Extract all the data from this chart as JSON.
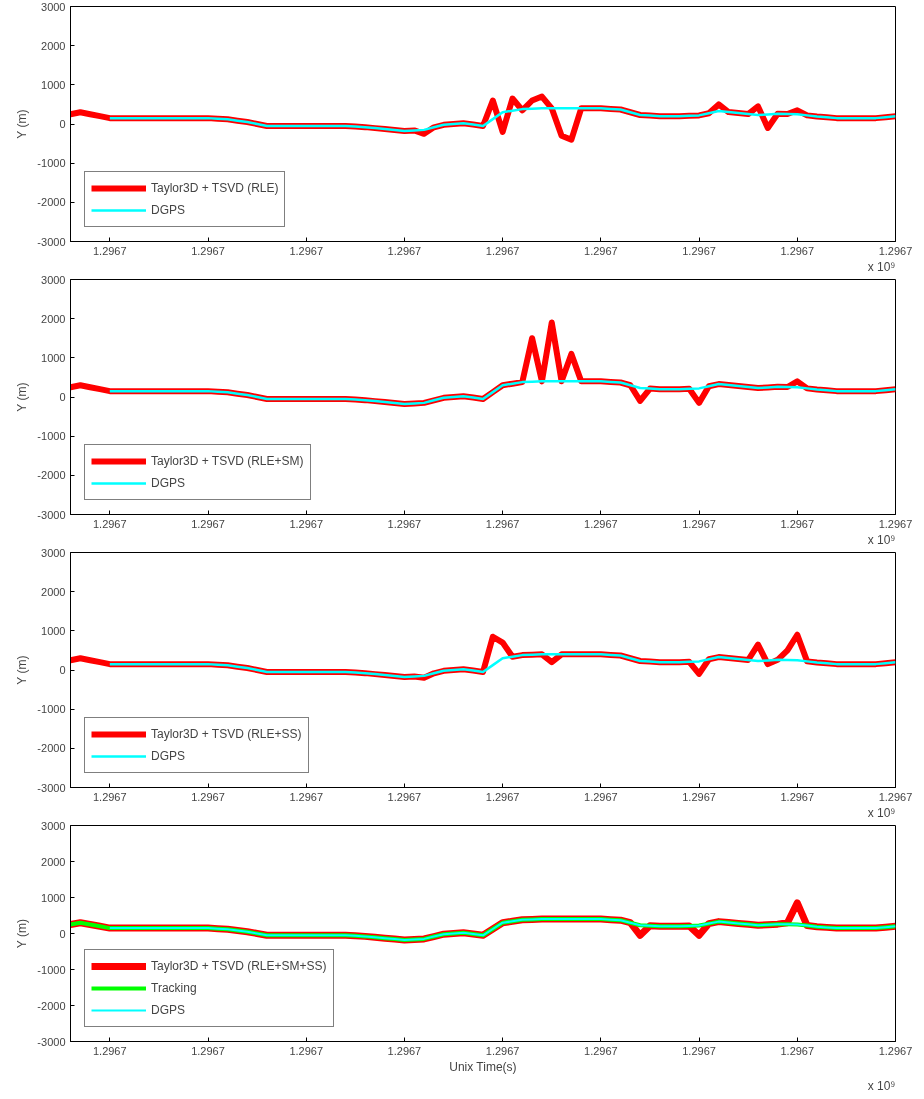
{
  "chart_data": [
    {
      "type": "line",
      "ylabel": "Y (m)",
      "legend": "bottom left",
      "grid": false,
      "annotations": [
        "x 10⁹"
      ],
      "x": [
        1.2967006,
        1.2967007,
        1.2967008,
        1.2967009,
        1.296701,
        1.2967011,
        1.2967012,
        1.2967013,
        1.2967014,
        1.2967015,
        1.2967016,
        1.2967017,
        1.2967018,
        1.2967019,
        1.296702,
        1.2967021,
        1.2967022,
        1.2967023,
        1.2967024,
        1.2967025,
        1.2967026,
        1.2967027,
        1.2967028,
        1.2967029,
        1.296703,
        1.2967031,
        1.2967032,
        1.2967033,
        1.2967034,
        1.2967035,
        1.2967036,
        1.2967037,
        1.2967038,
        1.2967039,
        1.296704,
        1.2967041,
        1.2967042,
        1.2967043,
        1.2967044,
        1.2967045,
        1.2967046,
        1.2967047,
        1.2967048,
        1.2967049,
        1.296705,
        1.2967051,
        1.2967052,
        1.2967053,
        1.2967054,
        1.2967055,
        1.2967056,
        1.2967057,
        1.2967058,
        1.2967059,
        1.296706,
        1.2967061,
        1.2967062,
        1.2967063,
        1.2967064,
        1.2967065,
        1.2967066,
        1.2967067,
        1.2967068,
        1.2967069,
        1.296707,
        1.2967071,
        1.2967072,
        1.2967073,
        1.2967074,
        1.2967075,
        1.2967076,
        1.2967077,
        1.2967078,
        1.2967079,
        1.296708,
        1.2967081,
        1.2967082,
        1.2967083,
        1.2967084,
        1.2967085,
        1.2967086,
        1.2967087,
        1.2967088,
        1.2967089,
        1.296709
      ],
      "xlim": [
        1.2967006,
        1.296709
      ],
      "xticks": [
        {
          "value": 1.296701,
          "label": "1.2967"
        },
        {
          "value": 1.296702,
          "label": "1.2967"
        },
        {
          "value": 1.296703,
          "label": "1.2967"
        },
        {
          "value": 1.296704,
          "label": "1.2967"
        },
        {
          "value": 1.296705,
          "label": "1.2967"
        },
        {
          "value": 1.296706,
          "label": "1.2967"
        },
        {
          "value": 1.296707,
          "label": "1.2967"
        },
        {
          "value": 1.296708,
          "label": "1.2967"
        },
        {
          "value": 1.296709,
          "label": "1.2967"
        }
      ],
      "ylim": [
        -3000,
        3000
      ],
      "yticks": [
        -3000,
        -2000,
        -1000,
        0,
        1000,
        2000,
        3000
      ],
      "series": [
        {
          "name": "Taylor3D + TSVD (RLE)",
          "color": "#ff0000",
          "values": [
            250,
            300,
            250,
            200,
            150,
            150,
            150,
            150,
            150,
            150,
            150,
            150,
            150,
            150,
            150,
            135,
            120,
            85,
            50,
            0,
            -50,
            -50,
            -50,
            -50,
            -50,
            -50,
            -50,
            -50,
            -50,
            -65,
            -80,
            -105,
            -130,
            -155,
            -180,
            -165,
            -250,
            -85,
            -20,
            0,
            20,
            -15,
            -50,
            600,
            -200,
            650,
            350,
            600,
            700,
            400,
            -300,
            -400,
            400,
            400,
            400,
            385,
            370,
            300,
            230,
            215,
            200,
            200,
            200,
            210,
            220,
            275,
            500,
            305,
            280,
            255,
            450,
            -100,
            260,
            255,
            350,
            220,
            190,
            170,
            150,
            150,
            150,
            150,
            150,
            175,
            200
          ]
        },
        {
          "name": "DGPS",
          "color": "#00ffff",
          "values": [
            null,
            null,
            null,
            null,
            150,
            150,
            150,
            150,
            150,
            150,
            150,
            150,
            150,
            150,
            150,
            135,
            120,
            85,
            50,
            0,
            -50,
            -50,
            -50,
            -50,
            -50,
            -50,
            -50,
            -50,
            -50,
            -65,
            -80,
            -105,
            -130,
            -155,
            -180,
            -165,
            -150,
            -85,
            -20,
            0,
            20,
            -15,
            -50,
            125,
            300,
            340,
            380,
            390,
            400,
            400,
            400,
            400,
            400,
            400,
            400,
            385,
            370,
            300,
            230,
            215,
            200,
            200,
            200,
            210,
            220,
            275,
            330,
            305,
            280,
            255,
            230,
            245,
            260,
            255,
            250,
            220,
            190,
            170,
            150,
            150,
            150,
            150,
            150,
            175,
            200
          ]
        }
      ]
    },
    {
      "type": "line",
      "ylabel": "Y (m)",
      "legend": "bottom left",
      "grid": false,
      "annotations": [
        "x 10⁹"
      ],
      "x": [
        1.2967006,
        1.2967007,
        1.2967008,
        1.2967009,
        1.296701,
        1.2967011,
        1.2967012,
        1.2967013,
        1.2967014,
        1.2967015,
        1.2967016,
        1.2967017,
        1.2967018,
        1.2967019,
        1.296702,
        1.2967021,
        1.2967022,
        1.2967023,
        1.2967024,
        1.2967025,
        1.2967026,
        1.2967027,
        1.2967028,
        1.2967029,
        1.296703,
        1.2967031,
        1.2967032,
        1.2967033,
        1.2967034,
        1.2967035,
        1.2967036,
        1.2967037,
        1.2967038,
        1.2967039,
        1.296704,
        1.2967041,
        1.2967042,
        1.2967043,
        1.2967044,
        1.2967045,
        1.2967046,
        1.2967047,
        1.2967048,
        1.2967049,
        1.296705,
        1.2967051,
        1.2967052,
        1.2967053,
        1.2967054,
        1.2967055,
        1.2967056,
        1.2967057,
        1.2967058,
        1.2967059,
        1.296706,
        1.2967061,
        1.2967062,
        1.2967063,
        1.2967064,
        1.2967065,
        1.2967066,
        1.2967067,
        1.2967068,
        1.2967069,
        1.296707,
        1.2967071,
        1.2967072,
        1.2967073,
        1.2967074,
        1.2967075,
        1.2967076,
        1.2967077,
        1.2967078,
        1.2967079,
        1.296708,
        1.2967081,
        1.2967082,
        1.2967083,
        1.2967084,
        1.2967085,
        1.2967086,
        1.2967087,
        1.2967088,
        1.2967089,
        1.296709
      ],
      "xlim": [
        1.2967006,
        1.296709
      ],
      "xticks": [
        {
          "value": 1.296701,
          "label": "1.2967"
        },
        {
          "value": 1.296702,
          "label": "1.2967"
        },
        {
          "value": 1.296703,
          "label": "1.2967"
        },
        {
          "value": 1.296704,
          "label": "1.2967"
        },
        {
          "value": 1.296705,
          "label": "1.2967"
        },
        {
          "value": 1.296706,
          "label": "1.2967"
        },
        {
          "value": 1.296707,
          "label": "1.2967"
        },
        {
          "value": 1.296708,
          "label": "1.2967"
        },
        {
          "value": 1.296709,
          "label": "1.2967"
        }
      ],
      "ylim": [
        -3000,
        3000
      ],
      "yticks": [
        -3000,
        -2000,
        -1000,
        0,
        1000,
        2000,
        3000
      ],
      "series": [
        {
          "name": "Taylor3D + TSVD (RLE+SM)",
          "color": "#ff0000",
          "values": [
            250,
            300,
            250,
            200,
            150,
            150,
            150,
            150,
            150,
            150,
            150,
            150,
            150,
            150,
            150,
            135,
            120,
            85,
            50,
            0,
            -50,
            -50,
            -50,
            -50,
            -50,
            -50,
            -50,
            -50,
            -50,
            -65,
            -80,
            -105,
            -130,
            -155,
            -180,
            -165,
            -150,
            -85,
            -20,
            0,
            20,
            -15,
            -50,
            125,
            300,
            340,
            380,
            1500,
            400,
            1900,
            400,
            1100,
            400,
            400,
            400,
            385,
            370,
            300,
            -100,
            215,
            200,
            200,
            200,
            210,
            -150,
            275,
            330,
            305,
            280,
            255,
            230,
            245,
            260,
            255,
            400,
            220,
            190,
            170,
            150,
            150,
            150,
            150,
            150,
            175,
            200
          ]
        },
        {
          "name": "DGPS",
          "color": "#00ffff",
          "values": [
            null,
            null,
            null,
            null,
            150,
            150,
            150,
            150,
            150,
            150,
            150,
            150,
            150,
            150,
            150,
            135,
            120,
            85,
            50,
            0,
            -50,
            -50,
            -50,
            -50,
            -50,
            -50,
            -50,
            -50,
            -50,
            -65,
            -80,
            -105,
            -130,
            -155,
            -180,
            -165,
            -150,
            -85,
            -20,
            0,
            20,
            -15,
            -50,
            125,
            300,
            340,
            380,
            390,
            400,
            400,
            400,
            400,
            400,
            400,
            400,
            385,
            370,
            300,
            230,
            215,
            200,
            200,
            200,
            210,
            220,
            275,
            330,
            305,
            280,
            255,
            230,
            245,
            260,
            255,
            250,
            220,
            190,
            170,
            150,
            150,
            150,
            150,
            150,
            175,
            200
          ]
        }
      ]
    },
    {
      "type": "line",
      "ylabel": "Y (m)",
      "legend": "bottom left",
      "grid": false,
      "annotations": [
        "x 10⁹"
      ],
      "x": [
        1.2967006,
        1.2967007,
        1.2967008,
        1.2967009,
        1.296701,
        1.2967011,
        1.2967012,
        1.2967013,
        1.2967014,
        1.2967015,
        1.2967016,
        1.2967017,
        1.2967018,
        1.2967019,
        1.296702,
        1.2967021,
        1.2967022,
        1.2967023,
        1.2967024,
        1.2967025,
        1.2967026,
        1.2967027,
        1.2967028,
        1.2967029,
        1.296703,
        1.2967031,
        1.2967032,
        1.2967033,
        1.2967034,
        1.2967035,
        1.2967036,
        1.2967037,
        1.2967038,
        1.2967039,
        1.296704,
        1.2967041,
        1.2967042,
        1.2967043,
        1.2967044,
        1.2967045,
        1.2967046,
        1.2967047,
        1.2967048,
        1.2967049,
        1.296705,
        1.2967051,
        1.2967052,
        1.2967053,
        1.2967054,
        1.2967055,
        1.2967056,
        1.2967057,
        1.2967058,
        1.2967059,
        1.296706,
        1.2967061,
        1.2967062,
        1.2967063,
        1.2967064,
        1.2967065,
        1.2967066,
        1.2967067,
        1.2967068,
        1.2967069,
        1.296707,
        1.2967071,
        1.2967072,
        1.2967073,
        1.2967074,
        1.2967075,
        1.2967076,
        1.2967077,
        1.2967078,
        1.2967079,
        1.296708,
        1.2967081,
        1.2967082,
        1.2967083,
        1.2967084,
        1.2967085,
        1.2967086,
        1.2967087,
        1.2967088,
        1.2967089,
        1.296709
      ],
      "xlim": [
        1.2967006,
        1.296709
      ],
      "xticks": [
        {
          "value": 1.296701,
          "label": "1.2967"
        },
        {
          "value": 1.296702,
          "label": "1.2967"
        },
        {
          "value": 1.296703,
          "label": "1.2967"
        },
        {
          "value": 1.296704,
          "label": "1.2967"
        },
        {
          "value": 1.296705,
          "label": "1.2967"
        },
        {
          "value": 1.296706,
          "label": "1.2967"
        },
        {
          "value": 1.296707,
          "label": "1.2967"
        },
        {
          "value": 1.296708,
          "label": "1.2967"
        },
        {
          "value": 1.296709,
          "label": "1.2967"
        }
      ],
      "ylim": [
        -3000,
        3000
      ],
      "yticks": [
        -3000,
        -2000,
        -1000,
        0,
        1000,
        2000,
        3000
      ],
      "series": [
        {
          "name": "Taylor3D + TSVD (RLE+SS)",
          "color": "#ff0000",
          "values": [
            250,
            300,
            250,
            200,
            150,
            150,
            150,
            150,
            150,
            150,
            150,
            150,
            150,
            150,
            150,
            135,
            120,
            85,
            50,
            0,
            -50,
            -50,
            -50,
            -50,
            -50,
            -50,
            -50,
            -50,
            -50,
            -65,
            -80,
            -105,
            -130,
            -155,
            -180,
            -165,
            -200,
            -85,
            -20,
            0,
            20,
            -15,
            -50,
            850,
            700,
            340,
            380,
            390,
            400,
            200,
            400,
            400,
            400,
            400,
            400,
            385,
            370,
            300,
            230,
            215,
            200,
            200,
            200,
            210,
            -100,
            275,
            330,
            305,
            280,
            255,
            650,
            150,
            260,
            500,
            900,
            220,
            190,
            170,
            150,
            150,
            150,
            150,
            150,
            175,
            200
          ]
        },
        {
          "name": "DGPS",
          "color": "#00ffff",
          "values": [
            null,
            null,
            null,
            null,
            150,
            150,
            150,
            150,
            150,
            150,
            150,
            150,
            150,
            150,
            150,
            135,
            120,
            85,
            50,
            0,
            -50,
            -50,
            -50,
            -50,
            -50,
            -50,
            -50,
            -50,
            -50,
            -65,
            -80,
            -105,
            -130,
            -155,
            -180,
            -165,
            -150,
            -85,
            -20,
            0,
            20,
            -15,
            -50,
            125,
            300,
            340,
            380,
            390,
            400,
            400,
            400,
            400,
            400,
            400,
            400,
            385,
            370,
            300,
            230,
            215,
            200,
            200,
            200,
            210,
            220,
            275,
            330,
            305,
            280,
            255,
            230,
            245,
            260,
            255,
            250,
            220,
            190,
            170,
            150,
            150,
            150,
            150,
            150,
            175,
            200
          ]
        }
      ]
    },
    {
      "type": "line",
      "ylabel": "Y (m)",
      "xlabel": "Unix Time(s)",
      "legend": "bottom left",
      "grid": false,
      "annotations": [
        "x 10⁹"
      ],
      "x": [
        1.2967006,
        1.2967007,
        1.2967008,
        1.2967009,
        1.296701,
        1.2967011,
        1.2967012,
        1.2967013,
        1.2967014,
        1.2967015,
        1.2967016,
        1.2967017,
        1.2967018,
        1.2967019,
        1.296702,
        1.2967021,
        1.2967022,
        1.2967023,
        1.2967024,
        1.2967025,
        1.2967026,
        1.2967027,
        1.2967028,
        1.2967029,
        1.296703,
        1.2967031,
        1.2967032,
        1.2967033,
        1.2967034,
        1.2967035,
        1.2967036,
        1.2967037,
        1.2967038,
        1.2967039,
        1.296704,
        1.2967041,
        1.2967042,
        1.2967043,
        1.2967044,
        1.2967045,
        1.2967046,
        1.2967047,
        1.2967048,
        1.2967049,
        1.296705,
        1.2967051,
        1.2967052,
        1.2967053,
        1.2967054,
        1.2967055,
        1.2967056,
        1.2967057,
        1.2967058,
        1.2967059,
        1.296706,
        1.2967061,
        1.2967062,
        1.2967063,
        1.2967064,
        1.2967065,
        1.2967066,
        1.2967067,
        1.2967068,
        1.2967069,
        1.296707,
        1.2967071,
        1.2967072,
        1.2967073,
        1.2967074,
        1.2967075,
        1.2967076,
        1.2967077,
        1.2967078,
        1.2967079,
        1.296708,
        1.2967081,
        1.2967082,
        1.2967083,
        1.2967084,
        1.2967085,
        1.2967086,
        1.2967087,
        1.2967088,
        1.2967089,
        1.296709
      ],
      "xlim": [
        1.2967006,
        1.296709
      ],
      "xticks": [
        {
          "value": 1.296701,
          "label": "1.2967"
        },
        {
          "value": 1.296702,
          "label": "1.2967"
        },
        {
          "value": 1.296703,
          "label": "1.2967"
        },
        {
          "value": 1.296704,
          "label": "1.2967"
        },
        {
          "value": 1.296705,
          "label": "1.2967"
        },
        {
          "value": 1.296706,
          "label": "1.2967"
        },
        {
          "value": 1.296707,
          "label": "1.2967"
        },
        {
          "value": 1.296708,
          "label": "1.2967"
        },
        {
          "value": 1.296709,
          "label": "1.2967"
        }
      ],
      "ylim": [
        -3000,
        3000
      ],
      "yticks": [
        -3000,
        -2000,
        -1000,
        0,
        1000,
        2000,
        3000
      ],
      "series": [
        {
          "name": "Taylor3D + TSVD (RLE+SM+SS)",
          "color": "#ff0000",
          "values": [
            250,
            300,
            250,
            200,
            150,
            150,
            150,
            150,
            150,
            150,
            150,
            150,
            150,
            150,
            150,
            135,
            120,
            85,
            50,
            0,
            -50,
            -50,
            -50,
            -50,
            -50,
            -50,
            -50,
            -50,
            -50,
            -65,
            -80,
            -105,
            -130,
            -155,
            -180,
            -165,
            -150,
            -85,
            -20,
            0,
            20,
            -15,
            -50,
            125,
            300,
            340,
            380,
            390,
            400,
            400,
            400,
            400,
            400,
            400,
            400,
            385,
            370,
            300,
            -50,
            215,
            200,
            200,
            200,
            210,
            -50,
            275,
            330,
            305,
            280,
            255,
            230,
            245,
            260,
            300,
            850,
            220,
            190,
            170,
            150,
            150,
            150,
            150,
            150,
            175,
            200
          ]
        },
        {
          "name": "Tracking",
          "color": "#00ff00",
          "values": [
            250,
            300,
            250,
            200,
            150,
            150,
            150,
            150,
            150,
            150,
            150,
            150,
            150,
            150,
            150,
            135,
            120,
            85,
            50,
            0,
            -50,
            -50,
            -50,
            -50,
            -50,
            -50,
            -50,
            -50,
            -50,
            -65,
            -80,
            -105,
            -130,
            -155,
            -180,
            -165,
            -150,
            -85,
            -20,
            0,
            20,
            -15,
            -50,
            125,
            300,
            340,
            380,
            390,
            400,
            400,
            400,
            400,
            400,
            400,
            400,
            385,
            370,
            300,
            230,
            215,
            200,
            200,
            200,
            210,
            220,
            275,
            330,
            305,
            280,
            255,
            230,
            245,
            260,
            255,
            250,
            220,
            190,
            170,
            150,
            150,
            150,
            150,
            150,
            175,
            200
          ]
        },
        {
          "name": "DGPS",
          "color": "#00ffff",
          "values": [
            null,
            null,
            null,
            null,
            150,
            150,
            150,
            150,
            150,
            150,
            150,
            150,
            150,
            150,
            150,
            135,
            120,
            85,
            50,
            0,
            -50,
            -50,
            -50,
            -50,
            -50,
            -50,
            -50,
            -50,
            -50,
            -65,
            -80,
            -105,
            -130,
            -155,
            -180,
            -165,
            -150,
            -85,
            -20,
            0,
            20,
            -15,
            -50,
            125,
            300,
            340,
            380,
            390,
            400,
            400,
            400,
            400,
            400,
            400,
            400,
            385,
            370,
            300,
            230,
            215,
            200,
            200,
            200,
            210,
            220,
            275,
            330,
            305,
            280,
            255,
            230,
            245,
            260,
            255,
            250,
            220,
            190,
            170,
            150,
            150,
            150,
            150,
            150,
            175,
            200
          ]
        }
      ]
    }
  ]
}
